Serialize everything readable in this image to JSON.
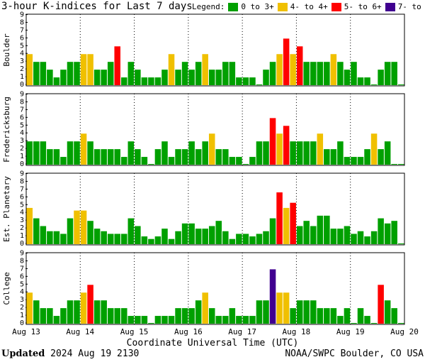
{
  "title": "3-hour K-indices for Last 7 days",
  "legend": {
    "label": "Legend:",
    "items": [
      {
        "text": "0 to 3+",
        "color": "#00a000"
      },
      {
        "text": "4- to 4+",
        "color": "#f0c000"
      },
      {
        "text": "5- to 6+",
        "color": "#ff0000"
      },
      {
        "text": "7- to 9",
        "color": "#400090"
      }
    ]
  },
  "footer": {
    "updated_label": "Updated",
    "updated_value": "2024 Aug 19 2130",
    "credit": "NOAA/SWPC Boulder, CO USA"
  },
  "chart_data": {
    "type": "bar",
    "xlabel": "Coordinate Universal Time (UTC)",
    "x_tick_labels": [
      "Aug 13",
      "Aug 14",
      "Aug 15",
      "Aug 16",
      "Aug 17",
      "Aug 18",
      "Aug 19",
      "Aug 20"
    ],
    "ylim": [
      0,
      9
    ],
    "y_ticks": [
      0,
      1,
      2,
      3,
      4,
      5,
      6,
      7,
      8,
      9
    ],
    "grid": "vertical dotted at day boundaries",
    "color_scale": [
      {
        "min": 0,
        "max": 3.99,
        "color": "#00a000"
      },
      {
        "min": 4,
        "max": 4.99,
        "color": "#f0c000"
      },
      {
        "min": 5,
        "max": 6.99,
        "color": "#ff0000"
      },
      {
        "min": 7,
        "max": 9,
        "color": "#400090"
      }
    ],
    "panels": [
      {
        "ylabel": "Boulder",
        "values": [
          4,
          3,
          3,
          2,
          1,
          2,
          3,
          3,
          4,
          4,
          2,
          2,
          3,
          5,
          1,
          3,
          2,
          1,
          1,
          1,
          2,
          4,
          2,
          3,
          2,
          3,
          4,
          2,
          2,
          3,
          3,
          1,
          1,
          1,
          0,
          2,
          3,
          4,
          6,
          4,
          5,
          3,
          3,
          3,
          3,
          4,
          3,
          2,
          3,
          1,
          1,
          0,
          2,
          3,
          3,
          0
        ]
      },
      {
        "ylabel": "Fredericksburg",
        "values": [
          3,
          3,
          3,
          2,
          2,
          1,
          3,
          3,
          4,
          3,
          2,
          2,
          2,
          2,
          1,
          3,
          2,
          1,
          0,
          2,
          3,
          1,
          2,
          2,
          3,
          2,
          3,
          4,
          2,
          2,
          1,
          1,
          0,
          1,
          3,
          3,
          6,
          4,
          5,
          3,
          3,
          3,
          3,
          4,
          2,
          2,
          3,
          1,
          1,
          1,
          2,
          4,
          2,
          3,
          0,
          0
        ]
      },
      {
        "ylabel": "Est. Planetary",
        "values": [
          4.67,
          3.33,
          2.33,
          1.67,
          1.67,
          1.33,
          3.33,
          4.33,
          4.33,
          3.0,
          2.0,
          1.67,
          1.33,
          1.33,
          1.33,
          3.33,
          2.33,
          1.0,
          0.67,
          1.0,
          2.0,
          0.67,
          1.67,
          2.67,
          2.67,
          2.0,
          2.0,
          2.33,
          3.0,
          1.67,
          0.67,
          1.33,
          1.33,
          1.0,
          1.33,
          1.67,
          3.33,
          6.67,
          4.67,
          5.33,
          2.33,
          3.0,
          2.33,
          3.67,
          3.67,
          2.0,
          2.0,
          2.33,
          1.33,
          1.67,
          1.0,
          1.67,
          3.33,
          2.67,
          3.0,
          0
        ]
      },
      {
        "ylabel": "College",
        "values": [
          4,
          3,
          2,
          2,
          1,
          2,
          3,
          3,
          4,
          5,
          3,
          3,
          2,
          2,
          2,
          1,
          1,
          1,
          0,
          1,
          1,
          1,
          2,
          2,
          2,
          3,
          4,
          2,
          1,
          1,
          2,
          1,
          1,
          1,
          3,
          3,
          7,
          4,
          4,
          2,
          3,
          3,
          3,
          2,
          2,
          2,
          1,
          2,
          0,
          2,
          1,
          0,
          5,
          3,
          2,
          0
        ]
      }
    ]
  }
}
